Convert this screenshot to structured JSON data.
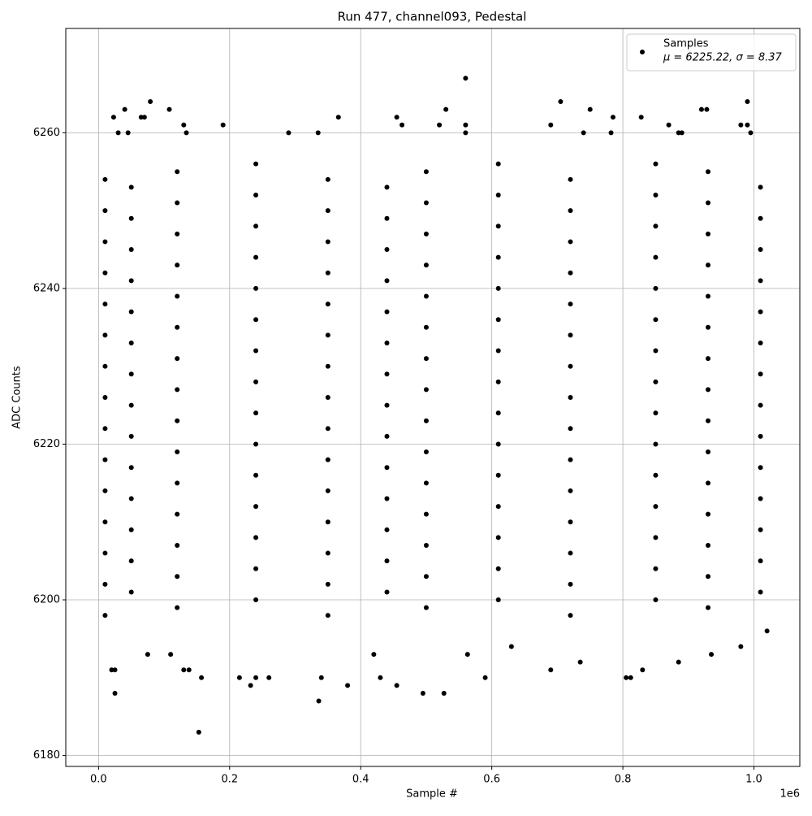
{
  "chart_data": {
    "type": "scatter",
    "title": "Run 477, channel093, Pedestal",
    "x_label": "Sample #",
    "y_label": "ADC Counts",
    "x_offset_label": "1e6",
    "xlim": [
      -0.05,
      1.07
    ],
    "ylim": [
      6178.6,
      6273.4
    ],
    "xticks": [
      {
        "value": 0,
        "label": "0.0"
      },
      0.2,
      0.4,
      0.6,
      0.8,
      {
        "value": 1,
        "label": "1.0"
      }
    ],
    "yticks": [
      6180,
      6200,
      6220,
      6240,
      6260
    ],
    "grid": true,
    "legend_position": "upper right",
    "legend_note": "μ = 6225.22, σ = 8.37",
    "series": [
      {
        "name": "Samples",
        "color": "#000000",
        "x": [
          0.01,
          0.35,
          0.72,
          0.12,
          0.5,
          0.93,
          0.24,
          0.61,
          0.85,
          0.05,
          0.44,
          1.01,
          0.01,
          0.35,
          0.72,
          0.12,
          0.5,
          0.93,
          0.24,
          0.61,
          0.85,
          0.05,
          0.44,
          1.01,
          0.01,
          0.35,
          0.72,
          0.12,
          0.5,
          0.93,
          0.24,
          0.61,
          0.85,
          0.05,
          0.44,
          1.01,
          0.01,
          0.35,
          0.72,
          0.12,
          0.5,
          0.93,
          0.24,
          0.61,
          0.85,
          0.05,
          0.44,
          1.01,
          0.01,
          0.35,
          0.72,
          0.12,
          0.5,
          0.93,
          0.24,
          0.61,
          0.85,
          0.05,
          0.44,
          1.01,
          0.01,
          0.35,
          0.72,
          0.12,
          0.5,
          0.93,
          0.24,
          0.61,
          0.85,
          0.05,
          0.44,
          1.01,
          0.01,
          0.35,
          0.72,
          0.12,
          0.5,
          0.93,
          0.24,
          0.61,
          0.85,
          0.05,
          0.44,
          1.01,
          0.01,
          0.35,
          0.72,
          0.12,
          0.5,
          0.93,
          0.24,
          0.61,
          0.85,
          0.05,
          0.44,
          1.01,
          0.01,
          0.35,
          0.72,
          0.12,
          0.5,
          0.93,
          0.24,
          0.61,
          0.85,
          0.05,
          0.44,
          1.01,
          0.01,
          0.35,
          0.72,
          0.12,
          0.5,
          0.93,
          0.24,
          0.61,
          0.85,
          0.05,
          0.44,
          1.01,
          0.01,
          0.35,
          0.72,
          0.12,
          0.5,
          0.93,
          0.24,
          0.61,
          0.85,
          0.05,
          0.44,
          1.01,
          0.01,
          0.35,
          0.72,
          0.12,
          0.5,
          0.93,
          0.24,
          0.61,
          0.85,
          0.05,
          0.44,
          1.01,
          0.01,
          0.35,
          0.72,
          0.12,
          0.5,
          0.93,
          0.24,
          0.61,
          0.85,
          0.05,
          0.44,
          1.01,
          0.01,
          0.35,
          0.72,
          0.12,
          0.5,
          0.93,
          0.24,
          0.61,
          0.85,
          0.05,
          0.44,
          1.01,
          0.01,
          0.35,
          0.72,
          0.12,
          0.5,
          0.93,
          0.24,
          0.61,
          0.85,
          0.153,
          0.025,
          0.336,
          0.495,
          0.527,
          0.38,
          0.455,
          0.232,
          0.02,
          0.025,
          0.13,
          0.138,
          0.157,
          0.215,
          0.24,
          0.26,
          0.34,
          0.43,
          0.59,
          0.805,
          0.812,
          0.42,
          0.075,
          0.11,
          0.563,
          0.63,
          0.69,
          0.735,
          0.83,
          0.885,
          0.935,
          0.98,
          1.02,
          0.56,
          0.079,
          0.705,
          0.99,
          0.04,
          0.108,
          0.53,
          0.75,
          0.92,
          0.928,
          0.023,
          0.07,
          0.065,
          0.366,
          0.455,
          0.785,
          0.828,
          0.13,
          0.19,
          0.463,
          0.52,
          0.56,
          0.69,
          0.87,
          0.98,
          0.99,
          0.03,
          0.045,
          0.134,
          0.29,
          0.335,
          0.56,
          0.74,
          0.782,
          0.885,
          0.89,
          0.995
        ],
        "values": [
          6198,
          6198,
          6198,
          6199,
          6199,
          6199,
          6200,
          6200,
          6200,
          6201,
          6201,
          6201,
          6202,
          6202,
          6202,
          6203,
          6203,
          6203,
          6204,
          6204,
          6204,
          6205,
          6205,
          6205,
          6206,
          6206,
          6206,
          6207,
          6207,
          6207,
          6208,
          6208,
          6208,
          6209,
          6209,
          6209,
          6210,
          6210,
          6210,
          6211,
          6211,
          6211,
          6212,
          6212,
          6212,
          6213,
          6213,
          6213,
          6214,
          6214,
          6214,
          6215,
          6215,
          6215,
          6216,
          6216,
          6216,
          6217,
          6217,
          6217,
          6218,
          6218,
          6218,
          6219,
          6219,
          6219,
          6220,
          6220,
          6220,
          6221,
          6221,
          6221,
          6222,
          6222,
          6222,
          6223,
          6223,
          6223,
          6224,
          6224,
          6224,
          6225,
          6225,
          6225,
          6226,
          6226,
          6226,
          6227,
          6227,
          6227,
          6228,
          6228,
          6228,
          6229,
          6229,
          6229,
          6230,
          6230,
          6230,
          6231,
          6231,
          6231,
          6232,
          6232,
          6232,
          6233,
          6233,
          6233,
          6234,
          6234,
          6234,
          6235,
          6235,
          6235,
          6236,
          6236,
          6236,
          6237,
          6237,
          6237,
          6238,
          6238,
          6238,
          6239,
          6239,
          6239,
          6240,
          6240,
          6240,
          6241,
          6241,
          6241,
          6242,
          6242,
          6242,
          6243,
          6243,
          6243,
          6244,
          6244,
          6244,
          6245,
          6245,
          6245,
          6246,
          6246,
          6246,
          6247,
          6247,
          6247,
          6248,
          6248,
          6248,
          6249,
          6249,
          6249,
          6250,
          6250,
          6250,
          6251,
          6251,
          6251,
          6252,
          6252,
          6252,
          6253,
          6253,
          6253,
          6254,
          6254,
          6254,
          6255,
          6255,
          6255,
          6256,
          6256,
          6256,
          6183,
          6188,
          6187,
          6188,
          6188,
          6189,
          6189,
          6189,
          6191,
          6191,
          6191,
          6191,
          6190,
          6190,
          6190,
          6190,
          6190,
          6190,
          6190,
          6190,
          6190,
          6193,
          6193,
          6193,
          6193,
          6194,
          6191,
          6192,
          6191,
          6192,
          6193,
          6194,
          6196,
          6267,
          6264,
          6264,
          6264,
          6263,
          6263,
          6263,
          6263,
          6263,
          6263,
          6262,
          6262,
          6262,
          6262,
          6262,
          6262,
          6262,
          6261,
          6261,
          6261,
          6261,
          6261,
          6261,
          6261,
          6261,
          6261,
          6260,
          6260,
          6260,
          6260,
          6260,
          6260,
          6260,
          6260,
          6260,
          6260,
          6260
        ]
      }
    ]
  }
}
